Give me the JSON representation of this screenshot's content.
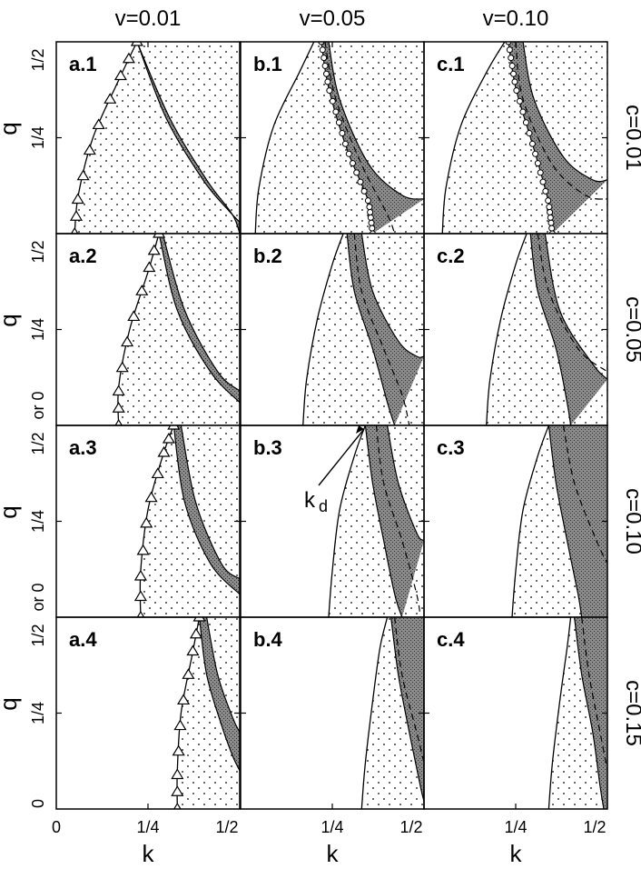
{
  "column_titles": [
    "v=0.01",
    "v=0.05",
    "v=0.10"
  ],
  "row_titles": [
    "c=0.01",
    "c=0.05",
    "c=0.10",
    "c=0.15"
  ],
  "panel_labels": [
    [
      "a.1",
      "b.1",
      "c.1"
    ],
    [
      "a.2",
      "b.2",
      "c.2"
    ],
    [
      "a.3",
      "b.3",
      "c.3"
    ],
    [
      "a.4",
      "b.4",
      "c.4"
    ]
  ],
  "axis": {
    "xlabel": "k",
    "ylabel": "q",
    "x_ticks": [
      {
        "v": 0,
        "label": "0"
      },
      {
        "v": 0.25,
        "label": "1/4"
      },
      {
        "v": 0.5,
        "label": "1/2"
      }
    ],
    "y_ticks_top": [
      {
        "v": 0.25,
        "label": "1/4"
      },
      {
        "v": 0.5,
        "label": "1/2"
      }
    ],
    "y_ticks_mid": [
      {
        "v": 0,
        "label": "or 0"
      },
      {
        "v": 0.25,
        "label": "1/4"
      },
      {
        "v": 0.5,
        "label": "1/2"
      }
    ],
    "y_ticks_bottom": [
      {
        "v": 0,
        "label": "0"
      },
      {
        "v": 0.25,
        "label": "1/4"
      },
      {
        "v": 0.5,
        "label": "1/2"
      }
    ]
  },
  "annotation": {
    "text": "k",
    "subscript": "d",
    "row": 2,
    "col": 1
  },
  "chart_data": {
    "type": "area",
    "xlim": [
      0,
      0.5
    ],
    "ylim": [
      0,
      0.5
    ],
    "grid": false,
    "panels": [
      {
        "row": 0,
        "col": 0,
        "left": [
          [
            0.05,
            0
          ],
          [
            0.06,
            0.1
          ],
          [
            0.1,
            0.25
          ],
          [
            0.17,
            0.4
          ],
          [
            0.22,
            0.5
          ]
        ],
        "right": [
          [
            0.22,
            0.5
          ],
          [
            0.3,
            0.3
          ],
          [
            0.4,
            0.14
          ],
          [
            0.47,
            0.06
          ],
          [
            0.5,
            0.03
          ]
        ],
        "dark_left": [
          [
            0.22,
            0.5
          ],
          [
            0.3,
            0.3
          ],
          [
            0.4,
            0.14
          ],
          [
            0.47,
            0.06
          ],
          [
            0.5,
            0.03
          ]
        ],
        "dark_right": [
          [
            0.22,
            0.5
          ],
          [
            0.31,
            0.3
          ],
          [
            0.41,
            0.14
          ],
          [
            0.48,
            0.05
          ],
          [
            0.5,
            0.0
          ]
        ],
        "dashed": null,
        "markers": "triangle"
      },
      {
        "row": 0,
        "col": 1,
        "left": [
          [
            0.04,
            0
          ],
          [
            0.05,
            0.12
          ],
          [
            0.09,
            0.28
          ],
          [
            0.16,
            0.42
          ],
          [
            0.2,
            0.5
          ]
        ],
        "right": [
          [
            0.22,
            0.5
          ],
          [
            0.24,
            0.38
          ],
          [
            0.29,
            0.22
          ],
          [
            0.35,
            0.08
          ],
          [
            0.36,
            0
          ]
        ],
        "dark_left": [
          [
            0.22,
            0.5
          ],
          [
            0.24,
            0.38
          ],
          [
            0.29,
            0.22
          ],
          [
            0.35,
            0.08
          ],
          [
            0.36,
            0
          ]
        ],
        "dark_right": [
          [
            0.24,
            0.5
          ],
          [
            0.27,
            0.35
          ],
          [
            0.35,
            0.18
          ],
          [
            0.44,
            0.1
          ],
          [
            0.5,
            0.09
          ]
        ],
        "dashed": [
          [
            0.23,
            0.5
          ],
          [
            0.26,
            0.35
          ],
          [
            0.33,
            0.18
          ],
          [
            0.4,
            0.05
          ],
          [
            0.42,
            0
          ]
        ],
        "markers": "circle"
      },
      {
        "row": 0,
        "col": 2,
        "left": [
          [
            0.05,
            0
          ],
          [
            0.06,
            0.12
          ],
          [
            0.1,
            0.28
          ],
          [
            0.17,
            0.42
          ],
          [
            0.22,
            0.5
          ]
        ],
        "right": [
          [
            0.23,
            0.5
          ],
          [
            0.25,
            0.38
          ],
          [
            0.3,
            0.22
          ],
          [
            0.34,
            0.08
          ],
          [
            0.35,
            0
          ]
        ],
        "dark_left": [
          [
            0.23,
            0.5
          ],
          [
            0.25,
            0.38
          ],
          [
            0.3,
            0.22
          ],
          [
            0.34,
            0.08
          ],
          [
            0.35,
            0
          ]
        ],
        "dark_right": [
          [
            0.27,
            0.5
          ],
          [
            0.3,
            0.35
          ],
          [
            0.38,
            0.2
          ],
          [
            0.46,
            0.14
          ],
          [
            0.5,
            0.14
          ]
        ],
        "dashed": [
          [
            0.25,
            0.5
          ],
          [
            0.27,
            0.35
          ],
          [
            0.35,
            0.18
          ],
          [
            0.44,
            0.1
          ],
          [
            0.5,
            0.09
          ]
        ],
        "markers": "circle"
      },
      {
        "row": 1,
        "col": 0,
        "left": [
          [
            0.17,
            0
          ],
          [
            0.17,
            0.1
          ],
          [
            0.2,
            0.25
          ],
          [
            0.25,
            0.4
          ],
          [
            0.28,
            0.5
          ]
        ],
        "right": [
          [
            0.28,
            0.5
          ],
          [
            0.33,
            0.3
          ],
          [
            0.42,
            0.14
          ],
          [
            0.5,
            0.06
          ]
        ],
        "dark_left": [
          [
            0.28,
            0.5
          ],
          [
            0.33,
            0.3
          ],
          [
            0.42,
            0.14
          ],
          [
            0.5,
            0.06
          ]
        ],
        "dark_right": [
          [
            0.29,
            0.5
          ],
          [
            0.35,
            0.3
          ],
          [
            0.44,
            0.14
          ],
          [
            0.5,
            0.09
          ]
        ],
        "dashed": null,
        "markers": "triangle"
      },
      {
        "row": 1,
        "col": 1,
        "left": [
          [
            0.17,
            0
          ],
          [
            0.18,
            0.12
          ],
          [
            0.21,
            0.28
          ],
          [
            0.25,
            0.42
          ],
          [
            0.28,
            0.5
          ]
        ],
        "right": [
          [
            0.29,
            0.5
          ],
          [
            0.31,
            0.35
          ],
          [
            0.36,
            0.2
          ],
          [
            0.4,
            0.06
          ],
          [
            0.42,
            0
          ]
        ],
        "dark_left": [
          [
            0.29,
            0.5
          ],
          [
            0.31,
            0.35
          ],
          [
            0.36,
            0.2
          ],
          [
            0.4,
            0.06
          ],
          [
            0.42,
            0
          ]
        ],
        "dark_right": [
          [
            0.33,
            0.5
          ],
          [
            0.36,
            0.35
          ],
          [
            0.43,
            0.22
          ],
          [
            0.48,
            0.18
          ],
          [
            0.5,
            0.18
          ]
        ],
        "dashed": [
          [
            0.31,
            0.5
          ],
          [
            0.33,
            0.35
          ],
          [
            0.39,
            0.2
          ],
          [
            0.44,
            0.08
          ],
          [
            0.46,
            0
          ]
        ],
        "markers": null
      },
      {
        "row": 1,
        "col": 2,
        "left": [
          [
            0.17,
            0
          ],
          [
            0.18,
            0.12
          ],
          [
            0.21,
            0.28
          ],
          [
            0.25,
            0.42
          ],
          [
            0.28,
            0.5
          ]
        ],
        "right": [
          [
            0.29,
            0.5
          ],
          [
            0.31,
            0.35
          ],
          [
            0.36,
            0.2
          ],
          [
            0.39,
            0.06
          ],
          [
            0.4,
            0
          ]
        ],
        "dark_left": [
          [
            0.29,
            0.5
          ],
          [
            0.31,
            0.35
          ],
          [
            0.36,
            0.2
          ],
          [
            0.39,
            0.06
          ],
          [
            0.4,
            0
          ]
        ],
        "dark_right": [
          [
            0.33,
            0.5
          ],
          [
            0.37,
            0.3
          ],
          [
            0.46,
            0.16
          ],
          [
            0.5,
            0.12
          ]
        ],
        "dashed": [
          [
            0.31,
            0.5
          ],
          [
            0.34,
            0.35
          ],
          [
            0.42,
            0.2
          ],
          [
            0.5,
            0.14
          ]
        ],
        "markers": null
      },
      {
        "row": 2,
        "col": 0,
        "left": [
          [
            0.23,
            0
          ],
          [
            0.23,
            0.12
          ],
          [
            0.25,
            0.28
          ],
          [
            0.29,
            0.42
          ],
          [
            0.32,
            0.5
          ]
        ],
        "right": [
          [
            0.32,
            0.5
          ],
          [
            0.35,
            0.3
          ],
          [
            0.42,
            0.14
          ],
          [
            0.5,
            0.06
          ]
        ],
        "dark_left": [
          [
            0.32,
            0.5
          ],
          [
            0.35,
            0.3
          ],
          [
            0.42,
            0.14
          ],
          [
            0.5,
            0.06
          ]
        ],
        "dark_right": [
          [
            0.34,
            0.5
          ],
          [
            0.38,
            0.3
          ],
          [
            0.45,
            0.14
          ],
          [
            0.5,
            0.1
          ]
        ],
        "dashed": null,
        "markers": "triangle"
      },
      {
        "row": 2,
        "col": 1,
        "left": [
          [
            0.24,
            0
          ],
          [
            0.25,
            0.12
          ],
          [
            0.27,
            0.28
          ],
          [
            0.31,
            0.42
          ],
          [
            0.34,
            0.5
          ]
        ],
        "right": [
          [
            0.34,
            0.5
          ],
          [
            0.36,
            0.35
          ],
          [
            0.39,
            0.2
          ],
          [
            0.42,
            0.06
          ],
          [
            0.44,
            0
          ]
        ],
        "dark_left": [
          [
            0.34,
            0.5
          ],
          [
            0.36,
            0.35
          ],
          [
            0.39,
            0.2
          ],
          [
            0.42,
            0.06
          ],
          [
            0.44,
            0
          ]
        ],
        "dark_right": [
          [
            0.4,
            0.5
          ],
          [
            0.43,
            0.35
          ],
          [
            0.48,
            0.22
          ],
          [
            0.5,
            0.2
          ]
        ],
        "dashed": [
          [
            0.37,
            0.5
          ],
          [
            0.39,
            0.35
          ],
          [
            0.44,
            0.2
          ],
          [
            0.48,
            0.06
          ],
          [
            0.49,
            0
          ]
        ],
        "markers": null
      },
      {
        "row": 2,
        "col": 2,
        "left": [
          [
            0.24,
            0
          ],
          [
            0.25,
            0.12
          ],
          [
            0.27,
            0.28
          ],
          [
            0.31,
            0.42
          ],
          [
            0.34,
            0.5
          ]
        ],
        "right": [
          [
            0.34,
            0.5
          ],
          [
            0.36,
            0.35
          ],
          [
            0.39,
            0.2
          ],
          [
            0.42,
            0.06
          ],
          [
            0.43,
            0
          ]
        ],
        "dark_left": [
          [
            0.34,
            0.5
          ],
          [
            0.36,
            0.35
          ],
          [
            0.39,
            0.2
          ],
          [
            0.42,
            0.06
          ],
          [
            0.43,
            0
          ]
        ],
        "dark_right": [
          [
            0.5,
            0.5
          ],
          [
            0.5,
            0
          ]
        ],
        "dashed": [
          [
            0.38,
            0.5
          ],
          [
            0.41,
            0.35
          ],
          [
            0.47,
            0.2
          ],
          [
            0.5,
            0.14
          ]
        ],
        "markers": null
      },
      {
        "row": 3,
        "col": 0,
        "left": [
          [
            0.33,
            0
          ],
          [
            0.33,
            0.1
          ],
          [
            0.34,
            0.25
          ],
          [
            0.37,
            0.4
          ],
          [
            0.39,
            0.5
          ]
        ],
        "right": [
          [
            0.39,
            0.5
          ],
          [
            0.41,
            0.35
          ],
          [
            0.45,
            0.22
          ],
          [
            0.48,
            0.14
          ],
          [
            0.5,
            0.1
          ]
        ],
        "dark_left": [
          [
            0.39,
            0.5
          ],
          [
            0.41,
            0.35
          ],
          [
            0.45,
            0.22
          ],
          [
            0.48,
            0.14
          ],
          [
            0.5,
            0.1
          ]
        ],
        "dark_right": [
          [
            0.41,
            0.5
          ],
          [
            0.44,
            0.35
          ],
          [
            0.48,
            0.24
          ],
          [
            0.5,
            0.2
          ]
        ],
        "dashed": null,
        "markers": "triangle"
      },
      {
        "row": 3,
        "col": 1,
        "left": [
          [
            0.33,
            0
          ],
          [
            0.34,
            0.12
          ],
          [
            0.36,
            0.28
          ],
          [
            0.38,
            0.42
          ],
          [
            0.4,
            0.5
          ]
        ],
        "right": [
          [
            0.41,
            0.5
          ],
          [
            0.43,
            0.35
          ],
          [
            0.46,
            0.2
          ],
          [
            0.49,
            0.06
          ],
          [
            0.5,
            0.02
          ]
        ],
        "dark_left": [
          [
            0.41,
            0.5
          ],
          [
            0.43,
            0.35
          ],
          [
            0.46,
            0.2
          ],
          [
            0.49,
            0.06
          ],
          [
            0.5,
            0.02
          ]
        ],
        "dark_right": [
          [
            0.5,
            0.5
          ],
          [
            0.5,
            0
          ]
        ],
        "dashed": [
          [
            0.42,
            0.5
          ],
          [
            0.44,
            0.35
          ],
          [
            0.48,
            0.2
          ],
          [
            0.5,
            0.12
          ]
        ],
        "markers": null
      },
      {
        "row": 3,
        "col": 2,
        "left": [
          [
            0.34,
            0
          ],
          [
            0.35,
            0.12
          ],
          [
            0.37,
            0.28
          ],
          [
            0.39,
            0.42
          ],
          [
            0.4,
            0.5
          ]
        ],
        "right": [
          [
            0.41,
            0.5
          ],
          [
            0.43,
            0.35
          ],
          [
            0.46,
            0.2
          ],
          [
            0.48,
            0.06
          ],
          [
            0.49,
            0
          ]
        ],
        "dark_left": [
          [
            0.41,
            0.5
          ],
          [
            0.43,
            0.35
          ],
          [
            0.46,
            0.2
          ],
          [
            0.48,
            0.06
          ],
          [
            0.49,
            0
          ]
        ],
        "dark_right": [
          [
            0.5,
            0.5
          ],
          [
            0.5,
            0
          ]
        ],
        "dashed": [
          [
            0.43,
            0.5
          ],
          [
            0.45,
            0.35
          ],
          [
            0.48,
            0.2
          ],
          [
            0.5,
            0.1
          ]
        ],
        "markers": null
      }
    ]
  }
}
